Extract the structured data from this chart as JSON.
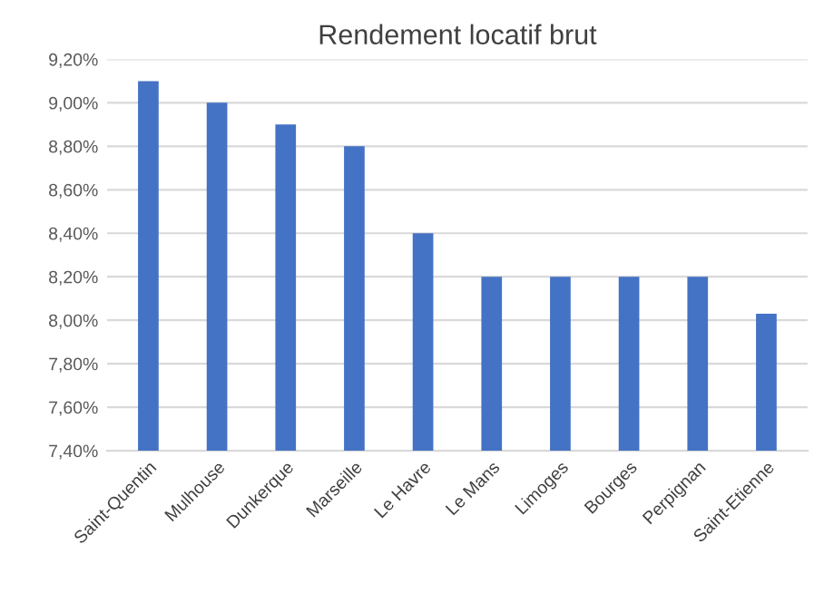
{
  "chart_data": {
    "type": "bar",
    "title": "Rendement locatif brut",
    "categories": [
      "Saint-Quentin",
      "Mulhouse",
      "Dunkerque",
      "Marseille",
      "Le Havre",
      "Le Mans",
      "Limoges",
      "Bourges",
      "Perpignan",
      "Saint-Etienne"
    ],
    "values": [
      9.1,
      9.0,
      8.9,
      8.8,
      8.4,
      8.2,
      8.2,
      8.2,
      8.2,
      8.03
    ],
    "color": "#4472c4",
    "ylim": [
      7.4,
      9.2
    ],
    "yticks": [
      {
        "value": 7.4,
        "label": "7,40%"
      },
      {
        "value": 7.6,
        "label": "7,60%"
      },
      {
        "value": 7.8,
        "label": "7,80%"
      },
      {
        "value": 8.0,
        "label": "8,00%"
      },
      {
        "value": 8.2,
        "label": "8,20%"
      },
      {
        "value": 8.4,
        "label": "8,40%"
      },
      {
        "value": 8.6,
        "label": "8,60%"
      },
      {
        "value": 8.8,
        "label": "8,80%"
      },
      {
        "value": 9.0,
        "label": "9,00%"
      },
      {
        "value": 9.2,
        "label": "9,20%"
      }
    ],
    "grid": "y"
  }
}
